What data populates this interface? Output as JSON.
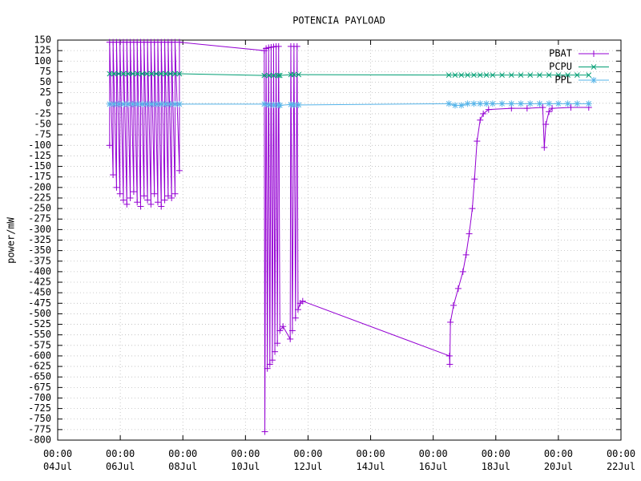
{
  "chart_data": {
    "type": "line",
    "title": "POTENCIA PAYLOAD",
    "y_label": "power/mW",
    "xlim": [
      4,
      22
    ],
    "ylim": [
      -800,
      150
    ],
    "xticks": [
      {
        "value": 4,
        "label": "00:00\n04Jul"
      },
      {
        "value": 6,
        "label": "00:00\n06Jul"
      },
      {
        "value": 8,
        "label": "00:00\n08Jul"
      },
      {
        "value": 10,
        "label": "00:00\n10Jul"
      },
      {
        "value": 12,
        "label": "00:00\n12Jul"
      },
      {
        "value": 14,
        "label": "00:00\n14Jul"
      },
      {
        "value": 16,
        "label": "00:00\n16Jul"
      },
      {
        "value": 18,
        "label": "00:00\n18Jul"
      },
      {
        "value": 20,
        "label": "00:00\n20Jul"
      },
      {
        "value": 22,
        "label": "00:00\n22Jul"
      }
    ],
    "yticks": [
      150,
      125,
      100,
      75,
      50,
      25,
      0,
      -25,
      -50,
      -75,
      -100,
      -125,
      -150,
      -175,
      -200,
      -225,
      -250,
      -275,
      -300,
      -325,
      -350,
      -375,
      -400,
      -425,
      -450,
      -475,
      -500,
      -525,
      -550,
      -575,
      -600,
      -625,
      -650,
      -675,
      -700,
      -725,
      -750,
      -775,
      -800
    ],
    "grid": true,
    "legend": "top-right",
    "series": [
      {
        "name": "PBAT",
        "color": "#9400d3",
        "marker": "plus",
        "x": [
          5.66,
          5.66,
          5.77,
          5.77,
          5.88,
          5.88,
          5.99,
          5.99,
          6.1,
          6.1,
          6.21,
          6.21,
          6.32,
          6.32,
          6.43,
          6.43,
          6.54,
          6.54,
          6.65,
          6.65,
          6.76,
          6.76,
          6.87,
          6.87,
          6.98,
          6.98,
          7.09,
          7.09,
          7.2,
          7.2,
          7.31,
          7.31,
          7.42,
          7.42,
          7.53,
          7.53,
          7.64,
          7.64,
          7.75,
          7.75,
          7.89,
          7.89,
          10.6,
          10.62,
          10.66,
          10.7,
          10.74,
          10.78,
          10.82,
          10.86,
          10.9,
          10.94,
          10.98,
          11.02,
          11.06,
          11.1,
          11.2,
          11.43,
          11.45,
          11.5,
          11.55,
          11.6,
          11.65,
          11.68,
          11.75,
          11.83,
          16.52,
          16.53,
          16.55,
          16.65,
          16.8,
          16.95,
          17.05,
          17.15,
          17.25,
          17.32,
          17.4,
          17.5,
          17.6,
          17.77,
          18.5,
          19.0,
          19.5,
          19.55,
          19.6,
          19.7,
          19.8,
          20.4,
          20.97
        ],
        "values": [
          -100,
          145,
          -170,
          145,
          -200,
          145,
          -215,
          145,
          -230,
          145,
          -240,
          145,
          -225,
          145,
          -210,
          145,
          -235,
          145,
          -245,
          145,
          -220,
          145,
          -230,
          145,
          -240,
          145,
          -215,
          145,
          -235,
          145,
          -245,
          145,
          -230,
          145,
          -220,
          145,
          -225,
          145,
          -215,
          145,
          -160,
          145,
          125,
          -780,
          130,
          -630,
          132,
          -620,
          133,
          -610,
          134,
          -590,
          135,
          -570,
          135,
          -540,
          -530,
          -560,
          135,
          -540,
          135,
          -510,
          135,
          -490,
          -475,
          -470,
          -600,
          -620,
          -520,
          -480,
          -440,
          -400,
          -360,
          -310,
          -250,
          -180,
          -90,
          -40,
          -25,
          -15,
          -12,
          -12,
          -10,
          -105,
          -50,
          -20,
          -12,
          -10,
          -10
        ]
      },
      {
        "name": "PCPU",
        "color": "#009e73",
        "marker": "cross",
        "x": [
          5.66,
          5.8,
          5.95,
          6.1,
          6.25,
          6.4,
          6.55,
          6.7,
          6.85,
          7.0,
          7.15,
          7.3,
          7.45,
          7.6,
          7.75,
          7.89,
          10.6,
          10.75,
          10.9,
          11.05,
          11.1,
          11.45,
          11.55,
          11.7,
          16.5,
          16.7,
          16.9,
          17.1,
          17.3,
          17.5,
          17.7,
          17.9,
          18.2,
          18.5,
          18.8,
          19.1,
          19.4,
          19.7,
          20.0,
          20.3,
          20.6,
          20.97
        ],
        "values": [
          70,
          70,
          70,
          70,
          70,
          70,
          70,
          70,
          70,
          70,
          70,
          70,
          70,
          70,
          70,
          70,
          66,
          66,
          66,
          66,
          66,
          68,
          68,
          68,
          67,
          67,
          67,
          67,
          67,
          67,
          67,
          67,
          67,
          67,
          67,
          67,
          67,
          67,
          67,
          67,
          67,
          67
        ]
      },
      {
        "name": "PPL",
        "color": "#56b4e9",
        "marker": "star",
        "x": [
          5.66,
          5.8,
          5.95,
          6.1,
          6.25,
          6.4,
          6.55,
          6.7,
          6.85,
          7.0,
          7.15,
          7.3,
          7.45,
          7.6,
          7.75,
          7.89,
          10.6,
          10.75,
          10.9,
          11.05,
          11.1,
          11.45,
          11.55,
          11.7,
          16.5,
          16.7,
          16.9,
          17.1,
          17.3,
          17.5,
          17.7,
          17.9,
          18.2,
          18.5,
          18.8,
          19.1,
          19.4,
          19.7,
          20.0,
          20.3,
          20.6,
          20.97
        ],
        "values": [
          -2,
          -2,
          -2,
          -2,
          -2,
          -2,
          -2,
          -2,
          -2,
          -2,
          -2,
          -2,
          -2,
          -2,
          -2,
          -2,
          -2,
          -4,
          -4,
          -4,
          -5,
          -3,
          -4,
          -4,
          -1,
          -5,
          -5,
          -1,
          -1,
          -1,
          -1,
          -1,
          -1,
          -1,
          -1,
          -1,
          -1,
          -1,
          -1,
          -1,
          -1,
          -1
        ]
      }
    ]
  }
}
